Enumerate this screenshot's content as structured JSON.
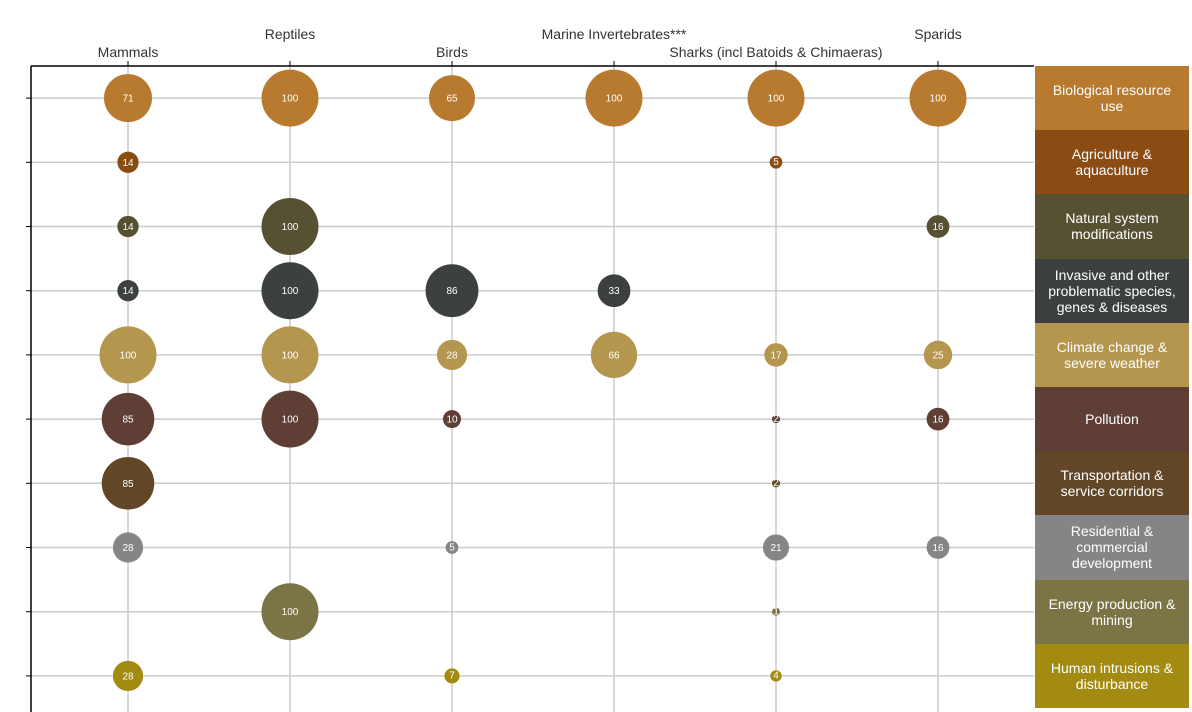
{
  "chart_data": {
    "type": "bubble-matrix",
    "columns": [
      "Mammals",
      "Reptiles",
      "Birds",
      "Marine Invertebrates***",
      "Sharks (incl Batoids & Chimaeras)",
      "Sparids"
    ],
    "rows": [
      {
        "label": "Biological resource use",
        "color": "#B87A2E",
        "values": [
          71,
          100,
          65,
          100,
          100,
          100
        ]
      },
      {
        "label": "Agriculture & aquaculture",
        "color": "#8A4C12",
        "values": [
          14,
          null,
          null,
          null,
          5,
          null
        ]
      },
      {
        "label": "Natural system modifications",
        "color": "#575133",
        "values": [
          14,
          100,
          null,
          null,
          null,
          16
        ]
      },
      {
        "label": "Invasive and other problematic species, genes & diseases",
        "color": "#3C4140",
        "values": [
          14,
          100,
          86,
          33,
          null,
          null
        ]
      },
      {
        "label": "Climate change & severe weather",
        "color": "#B5964F",
        "values": [
          100,
          100,
          28,
          66,
          17,
          25
        ]
      },
      {
        "label": "Pollution",
        "color": "#5E3E35",
        "values": [
          85,
          100,
          10,
          null,
          2,
          16
        ]
      },
      {
        "label": "Transportation & service corridors",
        "color": "#614727",
        "values": [
          85,
          null,
          null,
          null,
          2,
          null
        ]
      },
      {
        "label": "Residential & commercial development",
        "color": "#858585",
        "values": [
          28,
          null,
          5,
          null,
          21,
          16
        ]
      },
      {
        "label": "Energy production & mining",
        "color": "#7B7445",
        "values": [
          null,
          100,
          null,
          null,
          1,
          null
        ]
      },
      {
        "label": "Human intrusions & disturbance",
        "color": "#A38B12",
        "values": [
          28,
          null,
          7,
          null,
          4,
          null
        ]
      }
    ]
  }
}
